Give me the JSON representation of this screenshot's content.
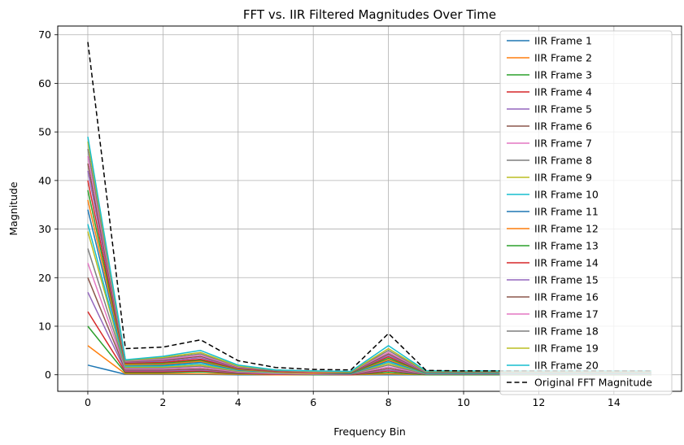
{
  "chart_data": {
    "type": "line",
    "title": "FFT vs. IIR Filtered Magnitudes Over Time",
    "xlabel": "Frequency Bin",
    "ylabel": "Magnitude",
    "xlim": [
      -0.8,
      15.8
    ],
    "ylim": [
      -3.4,
      71.8
    ],
    "xticks": [
      0,
      2,
      4,
      6,
      8,
      10,
      12,
      14
    ],
    "yticks": [
      0,
      10,
      20,
      30,
      40,
      50,
      60,
      70
    ],
    "grid": true,
    "legend_position": "top-right",
    "x": [
      0,
      1,
      2,
      3,
      4,
      5,
      6,
      7,
      8,
      9,
      10,
      11,
      12,
      13,
      14,
      15
    ],
    "series": [
      {
        "name": "IIR Frame 1",
        "color": "#1f77b4",
        "style": "solid",
        "values": [
          2.0,
          0.1,
          0.1,
          0.1,
          0.0,
          0.0,
          0.0,
          0.0,
          0.0,
          0.0,
          0.0,
          0.0,
          0.0,
          0.0,
          0.0,
          0.0
        ]
      },
      {
        "name": "IIR Frame 2",
        "color": "#ff7f0e",
        "style": "solid",
        "values": [
          6.0,
          0.2,
          0.2,
          0.2,
          0.1,
          0.0,
          0.0,
          0.0,
          0.2,
          0.0,
          0.0,
          0.0,
          0.0,
          0.0,
          0.0,
          0.0
        ]
      },
      {
        "name": "IIR Frame 3",
        "color": "#2ca02c",
        "style": "solid",
        "values": [
          10.0,
          0.4,
          0.4,
          0.6,
          0.2,
          0.1,
          0.0,
          0.0,
          0.5,
          0.0,
          0.0,
          0.0,
          0.0,
          0.0,
          0.0,
          0.0
        ]
      },
      {
        "name": "IIR Frame 4",
        "color": "#d62728",
        "style": "solid",
        "values": [
          13.0,
          0.6,
          0.6,
          0.8,
          0.3,
          0.1,
          0.1,
          0.0,
          0.8,
          0.1,
          0.1,
          0.1,
          0.1,
          0.1,
          0.1,
          0.1
        ]
      },
      {
        "name": "IIR Frame 5",
        "color": "#9467bd",
        "style": "solid",
        "values": [
          17.0,
          0.8,
          0.8,
          1.0,
          0.4,
          0.2,
          0.1,
          0.1,
          1.0,
          0.1,
          0.1,
          0.1,
          0.1,
          0.1,
          0.1,
          0.1
        ]
      },
      {
        "name": "IIR Frame 6",
        "color": "#8c564b",
        "style": "solid",
        "values": [
          20.0,
          1.0,
          1.0,
          1.2,
          0.5,
          0.3,
          0.2,
          0.1,
          1.3,
          0.1,
          0.1,
          0.1,
          0.1,
          0.1,
          0.1,
          0.1
        ]
      },
      {
        "name": "IIR Frame 7",
        "color": "#e377c2",
        "style": "solid",
        "values": [
          23.0,
          1.2,
          1.2,
          1.5,
          0.6,
          0.3,
          0.2,
          0.2,
          1.6,
          0.2,
          0.2,
          0.2,
          0.2,
          0.2,
          0.2,
          0.2
        ]
      },
      {
        "name": "IIR Frame 8",
        "color": "#7f7f7f",
        "style": "solid",
        "values": [
          26.0,
          1.4,
          1.4,
          1.8,
          0.7,
          0.4,
          0.3,
          0.2,
          2.0,
          0.2,
          0.2,
          0.2,
          0.2,
          0.2,
          0.2,
          0.2
        ]
      },
      {
        "name": "IIR Frame 9",
        "color": "#bcbd22",
        "style": "solid",
        "values": [
          29.5,
          1.6,
          1.6,
          2.0,
          0.8,
          0.4,
          0.3,
          0.3,
          2.3,
          0.3,
          0.3,
          0.3,
          0.3,
          0.3,
          0.3,
          0.3
        ]
      },
      {
        "name": "IIR Frame 10",
        "color": "#17becf",
        "style": "solid",
        "values": [
          31.0,
          1.8,
          1.8,
          2.3,
          0.9,
          0.5,
          0.4,
          0.3,
          2.6,
          0.3,
          0.3,
          0.3,
          0.3,
          0.3,
          0.3,
          0.3
        ]
      },
      {
        "name": "IIR Frame 11",
        "color": "#1f77b4",
        "style": "solid",
        "values": [
          34.0,
          2.0,
          2.0,
          2.6,
          1.0,
          0.6,
          0.4,
          0.3,
          2.9,
          0.4,
          0.4,
          0.4,
          0.4,
          0.4,
          0.4,
          0.4
        ]
      },
      {
        "name": "IIR Frame 12",
        "color": "#ff7f0e",
        "style": "solid",
        "values": [
          36.0,
          2.1,
          2.2,
          2.8,
          1.1,
          0.6,
          0.4,
          0.4,
          3.1,
          0.4,
          0.4,
          0.4,
          0.4,
          0.4,
          0.4,
          0.4
        ]
      },
      {
        "name": "IIR Frame 13",
        "color": "#2ca02c",
        "style": "solid",
        "values": [
          38.0,
          2.3,
          2.4,
          3.0,
          1.2,
          0.7,
          0.5,
          0.4,
          3.4,
          0.4,
          0.4,
          0.4,
          0.4,
          0.4,
          0.4,
          0.4
        ]
      },
      {
        "name": "IIR Frame 14",
        "color": "#d62728",
        "style": "solid",
        "values": [
          40.0,
          2.4,
          2.6,
          3.2,
          1.3,
          0.7,
          0.5,
          0.5,
          3.7,
          0.5,
          0.5,
          0.5,
          0.5,
          0.5,
          0.5,
          0.5
        ]
      },
      {
        "name": "IIR Frame 15",
        "color": "#9467bd",
        "style": "solid",
        "values": [
          42.0,
          2.6,
          2.8,
          3.5,
          1.4,
          0.8,
          0.6,
          0.5,
          4.0,
          0.5,
          0.5,
          0.5,
          0.5,
          0.5,
          0.5,
          0.5
        ]
      },
      {
        "name": "IIR Frame 16",
        "color": "#8c564b",
        "style": "solid",
        "values": [
          43.5,
          2.7,
          3.0,
          3.8,
          1.5,
          0.8,
          0.6,
          0.5,
          4.3,
          0.6,
          0.6,
          0.6,
          0.6,
          0.6,
          0.6,
          0.6
        ]
      },
      {
        "name": "IIR Frame 17",
        "color": "#e377c2",
        "style": "solid",
        "values": [
          45.0,
          2.8,
          3.2,
          4.0,
          1.6,
          0.9,
          0.6,
          0.6,
          4.6,
          0.6,
          0.6,
          0.6,
          0.6,
          0.6,
          0.6,
          0.6
        ]
      },
      {
        "name": "IIR Frame 18",
        "color": "#7f7f7f",
        "style": "solid",
        "values": [
          46.5,
          2.9,
          3.4,
          4.3,
          1.7,
          0.9,
          0.7,
          0.6,
          5.0,
          0.6,
          0.6,
          0.6,
          0.6,
          0.6,
          0.6,
          0.6
        ]
      },
      {
        "name": "IIR Frame 19",
        "color": "#bcbd22",
        "style": "solid",
        "values": [
          48.0,
          3.0,
          3.6,
          4.6,
          1.8,
          1.0,
          0.7,
          0.6,
          5.4,
          0.7,
          0.7,
          0.7,
          0.7,
          0.7,
          0.7,
          0.7
        ]
      },
      {
        "name": "IIR Frame 20",
        "color": "#17becf",
        "style": "solid",
        "values": [
          49.0,
          3.1,
          3.8,
          5.0,
          2.0,
          1.0,
          0.8,
          0.7,
          6.0,
          0.8,
          0.8,
          0.8,
          0.8,
          0.8,
          0.8,
          0.8
        ]
      },
      {
        "name": "Original FFT Magnitude",
        "color": "#000000",
        "style": "dashed",
        "values": [
          68.5,
          5.4,
          5.7,
          7.2,
          2.9,
          1.5,
          1.1,
          1.0,
          8.5,
          0.9,
          0.8,
          0.8,
          0.8,
          0.8,
          0.8,
          0.8
        ]
      }
    ]
  }
}
